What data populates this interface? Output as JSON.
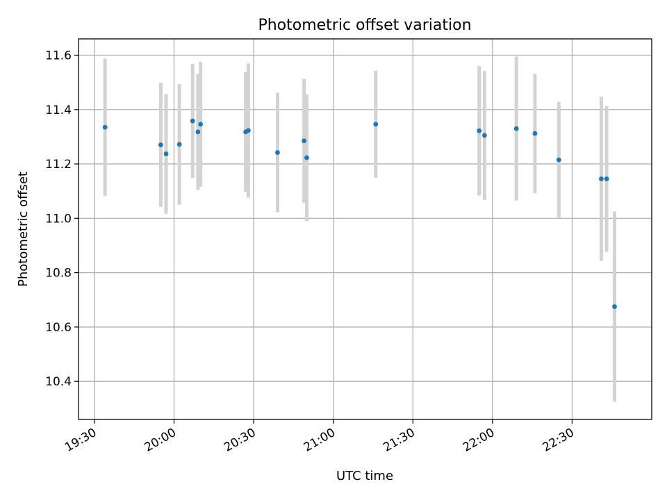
{
  "chart_data": {
    "type": "scatter",
    "title": "Photometric offset variation",
    "xlabel": "UTC time",
    "ylabel": "Photometric offset",
    "x_unit": "UTC time (HH:MM)",
    "xlim": [
      "19:24",
      "23:00"
    ],
    "ylim": [
      10.26,
      11.66
    ],
    "x_ticks": [
      "19:30",
      "20:00",
      "20:30",
      "21:00",
      "21:30",
      "22:00",
      "22:30"
    ],
    "y_ticks": [
      10.4,
      10.6,
      10.8,
      11.0,
      11.2,
      11.4,
      11.6
    ],
    "y_tick_labels": [
      "10.4",
      "10.6",
      "10.8",
      "11.0",
      "11.2",
      "11.4",
      "11.6"
    ],
    "grid": true,
    "point_color": "#1f77b4",
    "errorbar_color": "#d3d3d3",
    "points": [
      {
        "time": "19:34",
        "y": 11.335,
        "err": 0.253
      },
      {
        "time": "19:55",
        "y": 11.27,
        "err": 0.228
      },
      {
        "time": "19:57",
        "y": 11.237,
        "err": 0.22
      },
      {
        "time": "20:02",
        "y": 11.272,
        "err": 0.222
      },
      {
        "time": "20:07",
        "y": 11.358,
        "err": 0.21
      },
      {
        "time": "20:09",
        "y": 11.318,
        "err": 0.213
      },
      {
        "time": "20:10",
        "y": 11.346,
        "err": 0.23
      },
      {
        "time": "20:27",
        "y": 11.318,
        "err": 0.22
      },
      {
        "time": "20:28",
        "y": 11.323,
        "err": 0.247
      },
      {
        "time": "20:39",
        "y": 11.242,
        "err": 0.22
      },
      {
        "time": "20:49",
        "y": 11.285,
        "err": 0.228
      },
      {
        "time": "20:50",
        "y": 11.223,
        "err": 0.233
      },
      {
        "time": "21:16",
        "y": 11.346,
        "err": 0.197
      },
      {
        "time": "21:55",
        "y": 11.322,
        "err": 0.238
      },
      {
        "time": "21:57",
        "y": 11.305,
        "err": 0.237
      },
      {
        "time": "22:09",
        "y": 11.33,
        "err": 0.265
      },
      {
        "time": "22:16",
        "y": 11.312,
        "err": 0.22
      },
      {
        "time": "22:25",
        "y": 11.215,
        "err": 0.213
      },
      {
        "time": "22:41",
        "y": 11.145,
        "err": 0.302
      },
      {
        "time": "22:43",
        "y": 11.145,
        "err": 0.268
      },
      {
        "time": "22:46",
        "y": 10.675,
        "err": 0.35
      }
    ]
  }
}
